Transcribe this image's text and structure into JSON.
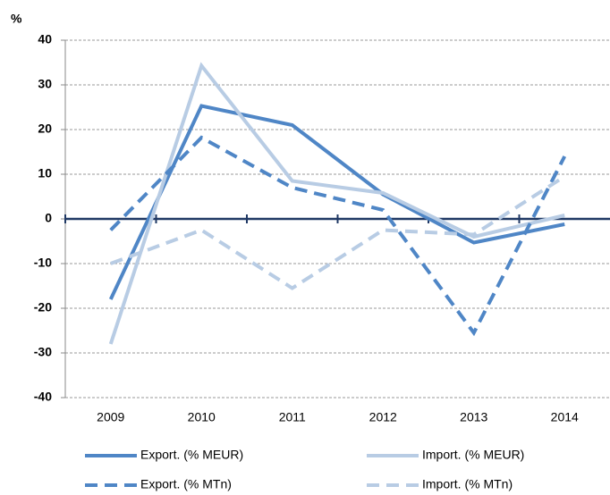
{
  "chart_data": {
    "type": "line",
    "y_label": "%",
    "categories": [
      "2009",
      "2010",
      "2011",
      "2012",
      "2013",
      "2014"
    ],
    "series": [
      {
        "name": "Export. (% MEUR)",
        "color": "#4f86c6",
        "dash": false,
        "values": [
          -18,
          25.3,
          21,
          5.5,
          -5.3,
          -1.2
        ]
      },
      {
        "name": "Import. (% MEUR)",
        "color": "#b8cce4",
        "dash": false,
        "values": [
          -28,
          34.3,
          8.5,
          5.8,
          -4,
          0.8
        ]
      },
      {
        "name": "Export. (% MTn)",
        "color": "#4f86c6",
        "dash": true,
        "values": [
          -2.5,
          18.2,
          7,
          2,
          -25.5,
          14
        ]
      },
      {
        "name": "Import. (% MTn)",
        "color": "#b8cce4",
        "dash": true,
        "values": [
          -10,
          -2.5,
          -15.5,
          -2.5,
          -3.5,
          9.5
        ]
      }
    ],
    "ylim": [
      -40,
      40
    ],
    "yticks": [
      -40,
      -30,
      -20,
      -10,
      0,
      10,
      20,
      30,
      40
    ],
    "grid": true
  }
}
